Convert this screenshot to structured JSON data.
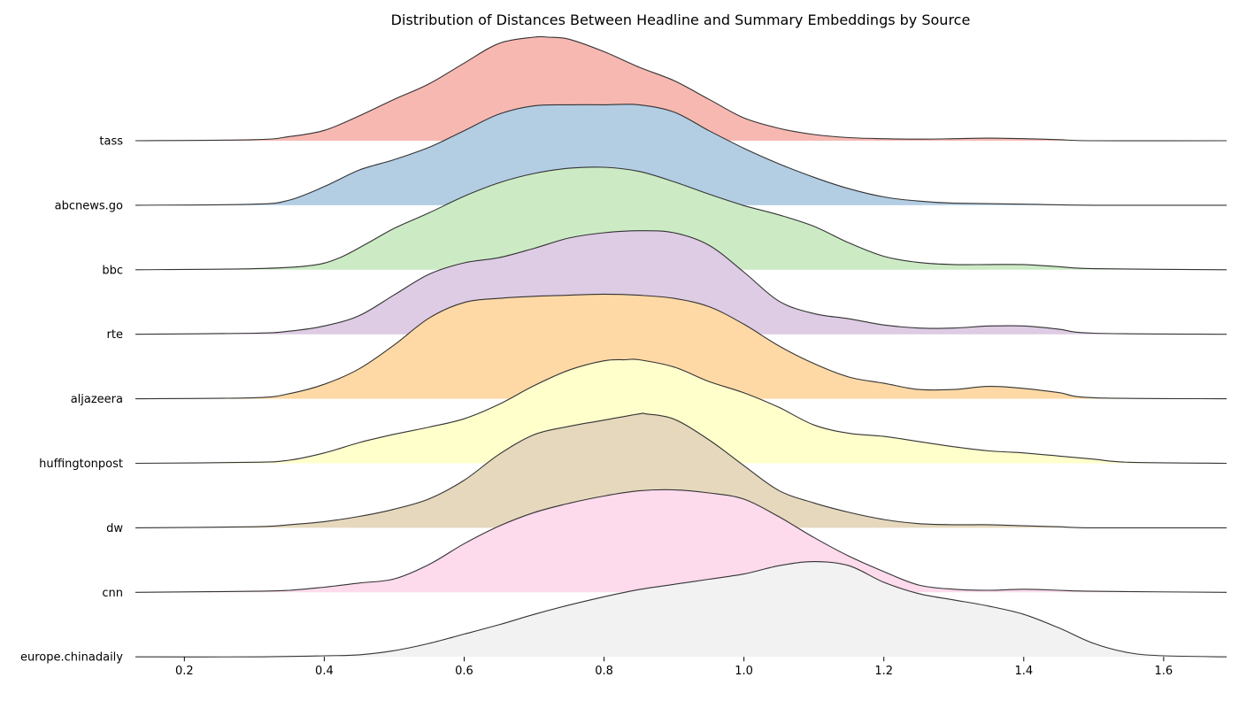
{
  "chart_data": {
    "type": "ridgeline",
    "title": "Distribution of Distances Between Headline and Summary Embeddings by Source",
    "xlabel": "",
    "ylabel": "",
    "xlim": [
      0.13,
      1.69
    ],
    "xticks": [
      "0.2",
      "0.4",
      "0.6",
      "0.8",
      "1.0",
      "1.2",
      "1.4",
      "1.6"
    ],
    "grid": false,
    "legend": "none",
    "line_color": "#333333",
    "series": [
      {
        "name": "tass",
        "color": "#F8B8B2",
        "x": [
          0.13,
          0.3,
          0.35,
          0.4,
          0.45,
          0.5,
          0.55,
          0.6,
          0.65,
          0.7,
          0.72,
          0.75,
          0.8,
          0.85,
          0.9,
          0.95,
          1.0,
          1.05,
          1.1,
          1.15,
          1.2,
          1.25,
          1.3,
          1.35,
          1.4,
          1.45,
          1.5,
          1.69
        ],
        "y": [
          0.0,
          0.01,
          0.04,
          0.1,
          0.24,
          0.4,
          0.55,
          0.75,
          0.94,
          1.0,
          1.0,
          0.98,
          0.86,
          0.71,
          0.58,
          0.4,
          0.22,
          0.12,
          0.06,
          0.03,
          0.02,
          0.015,
          0.02,
          0.025,
          0.02,
          0.01,
          0.0,
          0.0
        ]
      },
      {
        "name": "abcnews.go",
        "color": "#B3CDE3",
        "x": [
          0.13,
          0.3,
          0.35,
          0.4,
          0.45,
          0.5,
          0.55,
          0.6,
          0.65,
          0.7,
          0.75,
          0.8,
          0.85,
          0.9,
          0.95,
          1.0,
          1.05,
          1.1,
          1.15,
          1.2,
          1.25,
          1.3,
          1.4,
          1.5,
          1.69
        ],
        "y": [
          0.0,
          0.01,
          0.05,
          0.18,
          0.34,
          0.44,
          0.56,
          0.72,
          0.88,
          0.96,
          0.97,
          0.97,
          0.97,
          0.9,
          0.72,
          0.55,
          0.4,
          0.27,
          0.16,
          0.08,
          0.04,
          0.02,
          0.01,
          0.0,
          0.0
        ]
      },
      {
        "name": "bbc",
        "color": "#CCEBC5",
        "x": [
          0.13,
          0.3,
          0.38,
          0.42,
          0.46,
          0.5,
          0.55,
          0.6,
          0.65,
          0.7,
          0.75,
          0.8,
          0.85,
          0.9,
          0.95,
          1.0,
          1.05,
          1.1,
          1.15,
          1.2,
          1.25,
          1.3,
          1.35,
          1.4,
          1.45,
          1.5,
          1.69
        ],
        "y": [
          0.0,
          0.01,
          0.04,
          0.11,
          0.25,
          0.4,
          0.55,
          0.71,
          0.84,
          0.93,
          0.98,
          0.99,
          0.95,
          0.85,
          0.73,
          0.62,
          0.53,
          0.42,
          0.26,
          0.13,
          0.07,
          0.05,
          0.05,
          0.05,
          0.03,
          0.01,
          0.0
        ]
      },
      {
        "name": "rte",
        "color": "#DECBE4",
        "x": [
          0.13,
          0.3,
          0.35,
          0.4,
          0.45,
          0.5,
          0.55,
          0.6,
          0.65,
          0.7,
          0.75,
          0.8,
          0.85,
          0.9,
          0.95,
          1.0,
          1.05,
          1.1,
          1.15,
          1.2,
          1.25,
          1.3,
          1.35,
          1.4,
          1.45,
          1.5,
          1.69
        ],
        "y": [
          0.0,
          0.01,
          0.03,
          0.08,
          0.18,
          0.38,
          0.58,
          0.69,
          0.74,
          0.83,
          0.93,
          0.98,
          1.0,
          0.98,
          0.86,
          0.6,
          0.32,
          0.2,
          0.15,
          0.09,
          0.06,
          0.06,
          0.08,
          0.08,
          0.05,
          0.01,
          0.0
        ]
      },
      {
        "name": "aljazeera",
        "color": "#FED9A6",
        "x": [
          0.13,
          0.3,
          0.35,
          0.4,
          0.45,
          0.5,
          0.55,
          0.6,
          0.65,
          0.7,
          0.75,
          0.8,
          0.85,
          0.9,
          0.95,
          1.0,
          1.05,
          1.1,
          1.15,
          1.2,
          1.25,
          1.3,
          1.35,
          1.4,
          1.45,
          1.5,
          1.69
        ],
        "y": [
          0.0,
          0.01,
          0.05,
          0.14,
          0.29,
          0.52,
          0.78,
          0.93,
          0.97,
          0.99,
          1.0,
          1.01,
          1.0,
          0.97,
          0.89,
          0.72,
          0.51,
          0.34,
          0.21,
          0.15,
          0.09,
          0.09,
          0.12,
          0.1,
          0.06,
          0.01,
          0.0
        ]
      },
      {
        "name": "huffingtonpost",
        "color": "#FFFFCC",
        "x": [
          0.13,
          0.3,
          0.35,
          0.4,
          0.45,
          0.5,
          0.55,
          0.6,
          0.65,
          0.7,
          0.75,
          0.8,
          0.83,
          0.85,
          0.9,
          0.95,
          1.0,
          1.05,
          1.1,
          1.15,
          1.2,
          1.25,
          1.3,
          1.35,
          1.4,
          1.45,
          1.5,
          1.55,
          1.69
        ],
        "y": [
          0.0,
          0.01,
          0.03,
          0.1,
          0.2,
          0.28,
          0.35,
          0.43,
          0.57,
          0.75,
          0.9,
          0.99,
          1.0,
          1.0,
          0.93,
          0.79,
          0.68,
          0.54,
          0.37,
          0.29,
          0.26,
          0.21,
          0.16,
          0.12,
          0.1,
          0.07,
          0.04,
          0.01,
          0.0
        ]
      },
      {
        "name": "dw",
        "color": "#E5D8BD",
        "x": [
          0.13,
          0.3,
          0.35,
          0.4,
          0.45,
          0.5,
          0.55,
          0.6,
          0.65,
          0.7,
          0.75,
          0.8,
          0.85,
          0.86,
          0.9,
          0.95,
          1.0,
          1.05,
          1.1,
          1.15,
          1.2,
          1.25,
          1.3,
          1.35,
          1.4,
          1.45,
          1.5,
          1.69
        ],
        "y": [
          0.0,
          0.01,
          0.03,
          0.06,
          0.11,
          0.18,
          0.28,
          0.46,
          0.71,
          0.9,
          0.98,
          1.04,
          1.1,
          1.1,
          1.05,
          0.85,
          0.6,
          0.36,
          0.24,
          0.15,
          0.08,
          0.04,
          0.03,
          0.03,
          0.02,
          0.01,
          0.0,
          0.0
        ]
      },
      {
        "name": "cnn",
        "color": "#FDDAEC",
        "x": [
          0.13,
          0.3,
          0.35,
          0.4,
          0.45,
          0.5,
          0.55,
          0.6,
          0.65,
          0.7,
          0.75,
          0.8,
          0.85,
          0.9,
          0.95,
          1.0,
          1.05,
          1.1,
          1.15,
          1.2,
          1.25,
          1.3,
          1.35,
          1.4,
          1.45,
          1.5,
          1.69
        ],
        "y": [
          0.0,
          0.01,
          0.02,
          0.05,
          0.09,
          0.13,
          0.27,
          0.47,
          0.64,
          0.77,
          0.86,
          0.93,
          0.98,
          0.99,
          0.96,
          0.9,
          0.73,
          0.53,
          0.35,
          0.2,
          0.07,
          0.03,
          0.02,
          0.03,
          0.02,
          0.01,
          0.0
        ]
      },
      {
        "name": "europe.chinadaily",
        "color": "#F2F2F2",
        "x": [
          0.13,
          0.3,
          0.4,
          0.45,
          0.5,
          0.55,
          0.6,
          0.65,
          0.7,
          0.75,
          0.8,
          0.85,
          0.9,
          0.95,
          1.0,
          1.05,
          1.1,
          1.15,
          1.2,
          1.25,
          1.3,
          1.35,
          1.4,
          1.45,
          1.5,
          1.55,
          1.6,
          1.69
        ],
        "y": [
          0.0,
          0.0,
          0.01,
          0.02,
          0.06,
          0.13,
          0.22,
          0.31,
          0.41,
          0.5,
          0.58,
          0.65,
          0.7,
          0.75,
          0.8,
          0.88,
          0.92,
          0.88,
          0.72,
          0.61,
          0.55,
          0.49,
          0.41,
          0.28,
          0.13,
          0.04,
          0.01,
          0.0
        ]
      }
    ]
  }
}
